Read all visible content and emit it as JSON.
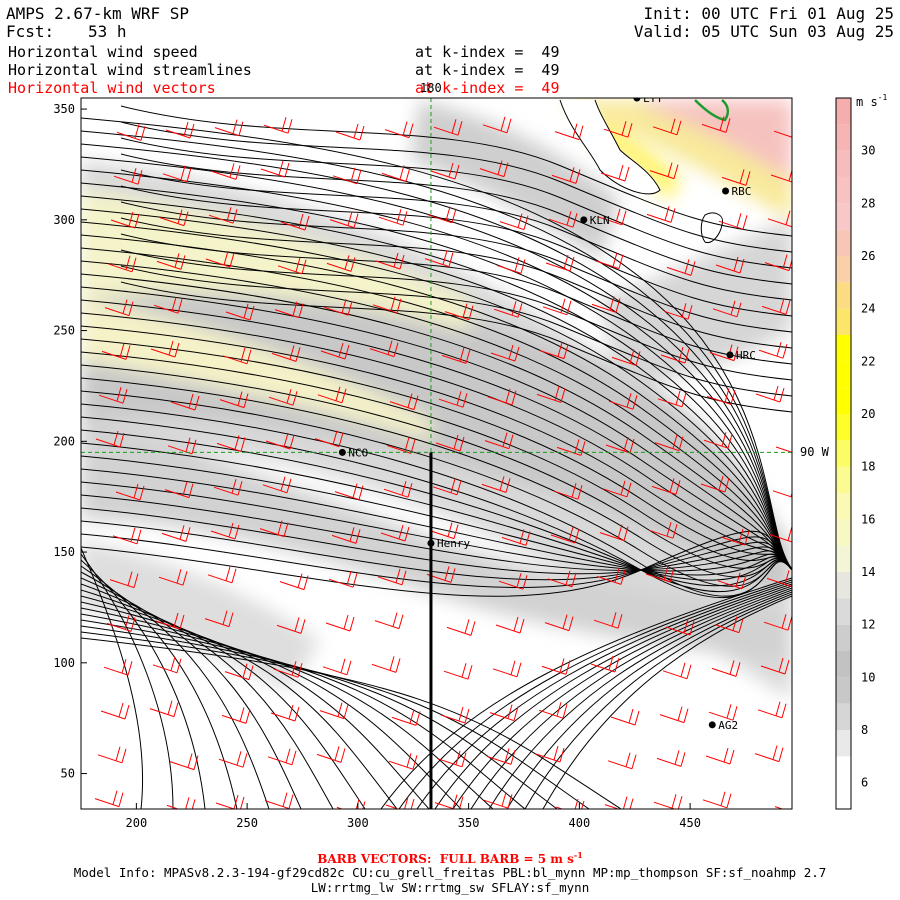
{
  "header": {
    "model": "AMPS 2.67-km WRF SP",
    "forecast_label": "Fcst:",
    "forecast_value": "53 h",
    "init": "Init: 00 UTC Fri 01 Aug 25",
    "valid": "Valid: 05 UTC Sun 03 Aug 25",
    "fields": [
      {
        "name": "Horizontal wind speed",
        "level": "at k-index =  49",
        "color": "#000000"
      },
      {
        "name": "Horizontal wind streamlines",
        "level": "at k-index =  49",
        "color": "#000000"
      },
      {
        "name": "Horizontal wind vectors",
        "level": "at k-index =  49",
        "color": "#ff0000"
      }
    ]
  },
  "map_labels": {
    "lon_top": "180",
    "lat_right": "90 W"
  },
  "stations": [
    {
      "name": "NCO",
      "x": 293,
      "y": 195
    },
    {
      "name": "Henry",
      "x": 333,
      "y": 154
    },
    {
      "name": "KLN",
      "x": 402,
      "y": 300
    },
    {
      "name": "RBC",
      "x": 466,
      "y": 313
    },
    {
      "name": "HRC",
      "x": 468,
      "y": 239
    },
    {
      "name": "AG2",
      "x": 460,
      "y": 72
    },
    {
      "name": "LTT",
      "x": 426,
      "y": 355
    }
  ],
  "colorbar": {
    "unit": "m s",
    "unit_sup": "-1",
    "bins": [
      {
        "from": 6,
        "color": "#ffffff"
      },
      {
        "from": 7,
        "color": "#e9e9e9"
      },
      {
        "from": 8,
        "color": "#d6d6d6"
      },
      {
        "from": 9,
        "color": "#c8c8c8"
      },
      {
        "from": 10,
        "color": "#c2c2c2"
      },
      {
        "from": 11,
        "color": "#cdcdcd"
      },
      {
        "from": 12,
        "color": "#dadada"
      },
      {
        "from": 13,
        "color": "#e7e7df"
      },
      {
        "from": 14,
        "color": "#f4f4d6"
      },
      {
        "from": 15,
        "color": "#f8f8c4"
      },
      {
        "from": 16,
        "color": "#fafab4"
      },
      {
        "from": 17,
        "color": "#fbfb92"
      },
      {
        "from": 18,
        "color": "#fcfc64"
      },
      {
        "from": 19,
        "color": "#fefe2a"
      },
      {
        "from": 20,
        "color": "#ffff00"
      },
      {
        "from": 21,
        "color": "#ffff00"
      },
      {
        "from": 22,
        "color": "#ffff00"
      },
      {
        "from": 23,
        "color": "#fbe66a"
      },
      {
        "from": 24,
        "color": "#fbdc82"
      },
      {
        "from": 25,
        "color": "#f9d0a8"
      },
      {
        "from": 26,
        "color": "#f7c6b6"
      },
      {
        "from": 27,
        "color": "#f8c8c8"
      },
      {
        "from": 28,
        "color": "#f8c2c2"
      },
      {
        "from": 29,
        "color": "#f7bcbc"
      },
      {
        "from": 30,
        "color": "#f6b4b4"
      },
      {
        "from": 31,
        "color": "#f5aeae"
      }
    ],
    "tick_labels": [
      "6",
      "8",
      "10",
      "12",
      "14",
      "16",
      "18",
      "20",
      "22",
      "24",
      "26",
      "28",
      "30"
    ]
  },
  "chart_data": {
    "type": "heatmap",
    "title": "Horizontal wind speed",
    "xlim": [
      175,
      496
    ],
    "ylim": [
      34,
      355
    ],
    "x_ticks": [
      200,
      250,
      300,
      350,
      400,
      450
    ],
    "y_ticks": [
      50,
      100,
      150,
      200,
      250,
      300,
      350
    ],
    "x_tick_labels": [
      "200",
      "250",
      "300",
      "350",
      "400",
      "450"
    ],
    "y_tick_labels": [
      "50",
      "100",
      "150",
      "200",
      "250",
      "300",
      "350"
    ],
    "guides": {
      "meridian_x": 333,
      "parallel_y": 195
    },
    "transect": {
      "x": 333,
      "y_from": 34,
      "y_to": 195
    },
    "units": "m s-1",
    "legend": "right"
  },
  "footer": {
    "barb_label": "BARB VECTORS:  FULL BARB = 5 m s",
    "barb_sup": "-1",
    "model_info_1": "Model Info: MPASv8.2.3-194-gf29cd82c CU:cu_grell_freitas PBL:bl_mynn MP:mp_thompson SF:sf_noahmp 2.7",
    "model_info_2": "LW:rrtmg_lw SW:rrtmg_sw SFLAY:sf_mynn"
  }
}
